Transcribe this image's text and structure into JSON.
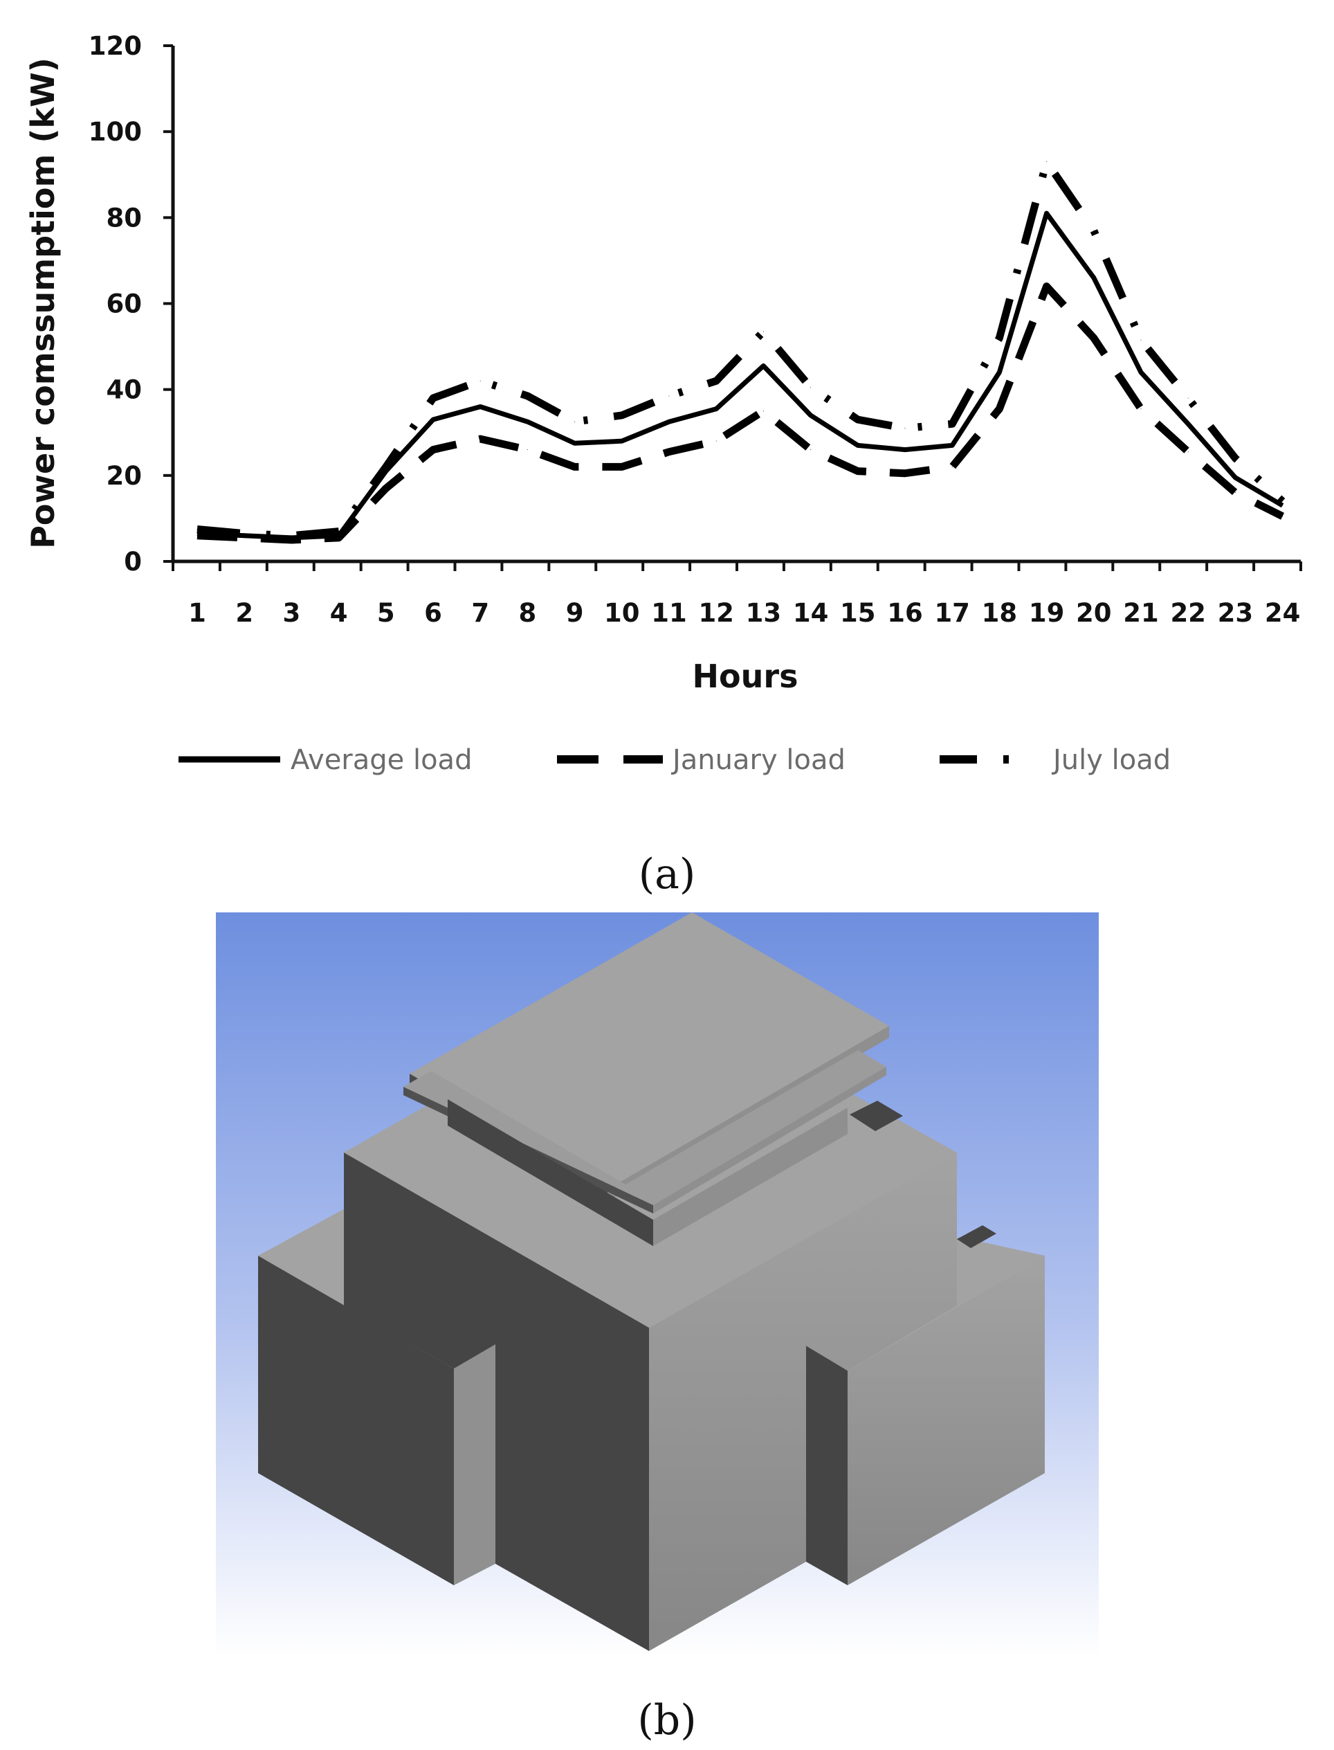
{
  "chart_data": {
    "type": "line",
    "title": "",
    "xlabel": "Hours",
    "ylabel": "Power comssumptiom (kW)",
    "x": [
      1,
      2,
      3,
      4,
      5,
      6,
      7,
      8,
      9,
      10,
      11,
      12,
      13,
      14,
      15,
      16,
      17,
      18,
      19,
      20,
      21,
      22,
      23,
      24
    ],
    "ylim": [
      0,
      120
    ],
    "yticks": [
      0,
      20,
      40,
      60,
      80,
      100,
      120
    ],
    "grid": false,
    "legend_position": "bottom",
    "series": [
      {
        "name": "Average load",
        "style": "solid",
        "values": [
          6.5,
          6,
          5.5,
          6,
          21,
          33,
          36,
          32.5,
          27.5,
          28,
          32.5,
          35.5,
          45.5,
          34,
          27,
          26,
          27,
          44,
          81,
          66,
          44,
          32,
          19.5,
          13
        ]
      },
      {
        "name": "January load",
        "style": "dashed",
        "values": [
          6,
          5.5,
          5,
          5.5,
          17,
          26,
          28.5,
          26,
          22,
          22,
          25.5,
          28,
          35,
          26,
          21,
          20.5,
          22,
          35.5,
          64,
          52,
          35.5,
          25.5,
          16,
          10.5
        ]
      },
      {
        "name": "July load",
        "style": "dash-dot",
        "values": [
          7.5,
          6.5,
          6,
          7,
          22,
          38,
          42,
          38.5,
          32.5,
          34,
          38.5,
          42,
          53.5,
          40.5,
          33,
          31,
          32,
          52,
          93,
          77,
          51.5,
          38,
          24,
          14
        ]
      }
    ]
  },
  "labels": {
    "panel_a": "(a)",
    "panel_b": "(b)"
  },
  "colors": {
    "sky_top": "#6e8fdf",
    "sky_bottom": "#ffffff",
    "light_face": "#a3a3a3",
    "mid_face": "#8c8c8c",
    "dark_face": "#454545",
    "line": "#000000"
  }
}
